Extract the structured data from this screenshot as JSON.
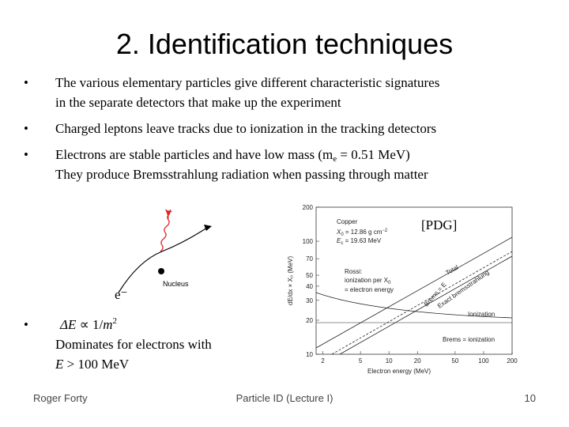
{
  "title": "2.  Identification techniques",
  "bullets": [
    {
      "lines": [
        "The various elementary particles give different characteristic signatures",
        "in the separate detectors that make up the experiment"
      ]
    },
    {
      "lines": [
        "Charged leptons leave tracks due to ionization in the tracking detectors"
      ]
    },
    {
      "line1": [
        "Electrons are stable particles and have low mass  (m",
        "e",
        " = 0.51 MeV)"
      ],
      "line2": "They produce Bremsstrahlung radiation when passing through matter"
    },
    {
      "formula": [
        "ΔE",
        " ∝ 1/",
        "m",
        "2"
      ],
      "lines": [
        "Dominates for electrons with"
      ],
      "last": [
        "E",
        " > 100 MeV"
      ]
    }
  ],
  "diagram": {
    "photon": "γ",
    "nucleus": "Nucleus",
    "electron": "e⁻"
  },
  "plot": {
    "source": "[PDG]",
    "ylabel": "dE/dx × X₀ (MeV)",
    "xlabel": "Electron energy (MeV)",
    "yticks": [
      "200",
      "100",
      "70",
      "50",
      "40",
      "30",
      "20",
      "10"
    ],
    "xticks": [
      "2",
      "5",
      "10",
      "20",
      "50",
      "100",
      "200"
    ],
    "legend": {
      "material": "Copper",
      "x0": [
        "X",
        "0",
        " = 12.86 g cm",
        "−2"
      ],
      "ec": [
        "E",
        "c",
        " = 19.63 MeV"
      ]
    },
    "rossi": [
      "Rossi:",
      "ionization per X",
      "0",
      "= electron energy"
    ],
    "curves": {
      "total": "Total",
      "brems": "Brems = E",
      "exact": "Exact bremsstrahlung",
      "ionization": "Ionization",
      "cross": "Brems = ionization"
    }
  },
  "footer": {
    "author": "Roger Forty",
    "lecture": "Particle ID  (Lecture I)",
    "page": "10"
  }
}
